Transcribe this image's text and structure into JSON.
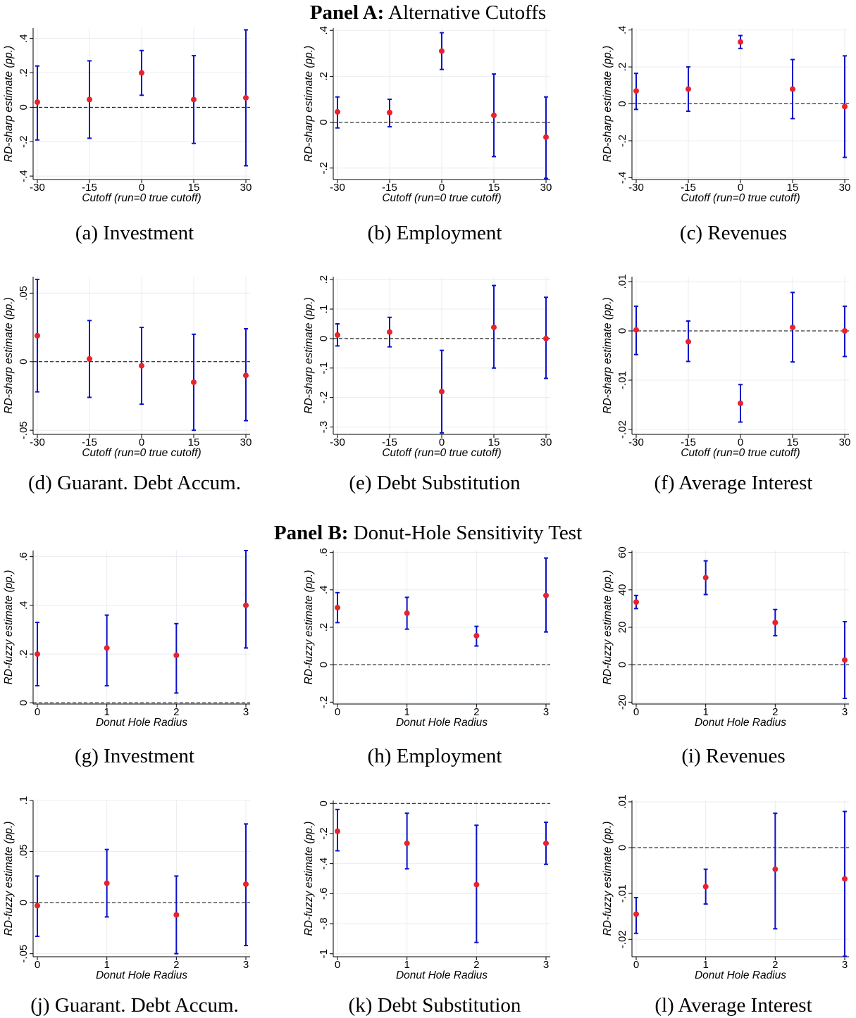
{
  "panel_a": {
    "label": "Panel A:",
    "title": "Alternative Cutoffs"
  },
  "panel_b": {
    "label": "Panel B:",
    "title": "Donut-Hole Sensitivity Test"
  },
  "colors": {
    "point": "#e8232b",
    "ci": "#0a12c9",
    "grid": "#e8ecf0",
    "zero_line": "#000000"
  },
  "chart_data": [
    {
      "type": "scatter",
      "caption": "(a) Investment",
      "xlabel": "Cutoff (run=0 true cutoff)",
      "ylabel": "RD-sharp estimate (pp.)",
      "x": [
        -30,
        -15,
        0,
        15,
        30
      ],
      "xticks": [
        "-30",
        "-15",
        "0",
        "15",
        "30"
      ],
      "xlim": [
        -30,
        30
      ],
      "y": [
        0.03,
        0.045,
        0.2,
        0.045,
        0.055
      ],
      "ci_low": [
        -0.19,
        -0.18,
        0.07,
        -0.21,
        -0.34
      ],
      "ci_high": [
        0.24,
        0.27,
        0.33,
        0.3,
        0.45
      ],
      "ylim": [
        -0.42,
        0.46
      ],
      "yticks": [
        -0.4,
        -0.2,
        0,
        0.2,
        0.4
      ],
      "yticklabels": [
        "-.4",
        "-.2",
        "0",
        ".2",
        ".4"
      ],
      "zero_line": true,
      "grid": true
    },
    {
      "type": "scatter",
      "caption": "(b) Employment",
      "xlabel": "Cutoff (run=0 true cutoff)",
      "ylabel": "RD-sharp estimate (pp.)",
      "x": [
        -30,
        -15,
        0,
        15,
        30
      ],
      "xticks": [
        "-30",
        "-15",
        "0",
        "15",
        "30"
      ],
      "xlim": [
        -30,
        30
      ],
      "y": [
        0.045,
        0.042,
        0.31,
        0.03,
        -0.065
      ],
      "ci_low": [
        -0.025,
        -0.02,
        0.23,
        -0.15,
        -0.245
      ],
      "ci_high": [
        0.11,
        0.1,
        0.39,
        0.21,
        0.11
      ],
      "ylim": [
        -0.25,
        0.41
      ],
      "yticks": [
        -0.2,
        0,
        0.2,
        0.4
      ],
      "yticklabels": [
        "-.2",
        "0",
        ".2",
        ".4"
      ],
      "zero_line": true,
      "grid": true
    },
    {
      "type": "scatter",
      "caption": "(c) Revenues",
      "xlabel": "Cutoff (run=0 true cutoff)",
      "ylabel": "RD-sharp estimate (pp.)",
      "x": [
        -30,
        -15,
        0,
        15,
        30
      ],
      "xticks": [
        "-30",
        "-15",
        "0",
        "15",
        "30"
      ],
      "xlim": [
        -30,
        30
      ],
      "y": [
        0.07,
        0.08,
        0.335,
        0.08,
        -0.015
      ],
      "ci_low": [
        -0.03,
        -0.04,
        0.3,
        -0.08,
        -0.29
      ],
      "ci_high": [
        0.165,
        0.2,
        0.37,
        0.24,
        0.26
      ],
      "ylim": [
        -0.41,
        0.41
      ],
      "yticks": [
        -0.4,
        -0.2,
        0,
        0.2,
        0.4
      ],
      "yticklabels": [
        "-.4",
        "-.2",
        "0",
        ".2",
        ".4"
      ],
      "zero_line": true,
      "grid": true
    },
    {
      "type": "scatter",
      "caption": "(d) Guarant. Debt Accum.",
      "xlabel": "Cutoff (run=0 true cutoff)",
      "ylabel": "RD-sharp estimate (pp.)",
      "x": [
        -30,
        -15,
        0,
        15,
        30
      ],
      "xticks": [
        "-30",
        "-15",
        "0",
        "15",
        "30"
      ],
      "xlim": [
        -30,
        30
      ],
      "y": [
        0.019,
        0.002,
        -0.003,
        -0.015,
        -0.01
      ],
      "ci_low": [
        -0.022,
        -0.026,
        -0.031,
        -0.05,
        -0.043
      ],
      "ci_high": [
        0.06,
        0.03,
        0.025,
        0.02,
        0.024
      ],
      "ylim": [
        -0.053,
        0.062
      ],
      "yticks": [
        -0.05,
        0,
        0.05
      ],
      "yticklabels": [
        "-.05",
        "0",
        ".05"
      ],
      "zero_line": true,
      "grid": true
    },
    {
      "type": "scatter",
      "caption": "(e) Debt Substitution",
      "xlabel": "Cutoff (run=0 true cutoff)",
      "ylabel": "RD-sharp estimate (pp.)",
      "x": [
        -30,
        -15,
        0,
        15,
        30
      ],
      "xticks": [
        "-30",
        "-15",
        "0",
        "15",
        "30"
      ],
      "xlim": [
        -30,
        30
      ],
      "y": [
        0.012,
        0.022,
        -0.18,
        0.038,
        0.0
      ],
      "ci_low": [
        -0.025,
        -0.028,
        -0.32,
        -0.1,
        -0.135
      ],
      "ci_high": [
        0.05,
        0.072,
        -0.04,
        0.18,
        0.14
      ],
      "ylim": [
        -0.325,
        0.21
      ],
      "yticks": [
        -0.3,
        -0.2,
        -0.1,
        0,
        0.1,
        0.2
      ],
      "yticklabels": [
        "-.3",
        "-.2",
        "-.1",
        "0",
        ".1",
        ".2"
      ],
      "zero_line": true,
      "grid": true
    },
    {
      "type": "scatter",
      "caption": "(f) Average Interest",
      "xlabel": "Cutoff (run=0 true cutoff)",
      "ylabel": "RD-sharp estimate (pp.)",
      "x": [
        -30,
        -15,
        0,
        15,
        30
      ],
      "xticks": [
        "-30",
        "-15",
        "0",
        "15",
        "30"
      ],
      "xlim": [
        -30,
        30
      ],
      "y": [
        0.0002,
        -0.0022,
        -0.0147,
        0.0007,
        0.0
      ],
      "ci_low": [
        -0.0048,
        -0.0062,
        -0.0185,
        -0.0063,
        -0.0052
      ],
      "ci_high": [
        0.005,
        0.002,
        -0.0109,
        0.0078,
        0.005
      ],
      "ylim": [
        -0.021,
        0.011
      ],
      "yticks": [
        -0.02,
        -0.01,
        0,
        0.01
      ],
      "yticklabels": [
        "-.02",
        "-.01",
        "0",
        ".01"
      ],
      "zero_line": true,
      "grid": true
    },
    {
      "type": "scatter",
      "caption": "(g) Investment",
      "xlabel": "Donut Hole Radius",
      "ylabel": "RD-fuzzy estimate (pp.)",
      "x": [
        0,
        1,
        2,
        3
      ],
      "xticks": [
        "0",
        "1",
        "2",
        "3"
      ],
      "xlim": [
        0,
        3
      ],
      "y": [
        0.2,
        0.225,
        0.195,
        0.4
      ],
      "ci_low": [
        0.07,
        0.07,
        0.04,
        0.225
      ],
      "ci_high": [
        0.33,
        0.36,
        0.325,
        0.625
      ],
      "ylim": [
        -0.005,
        0.625
      ],
      "yticks": [
        0,
        0.2,
        0.4,
        0.6
      ],
      "yticklabels": [
        "0",
        ".2",
        ".4",
        ".6"
      ],
      "zero_line": true,
      "grid": true
    },
    {
      "type": "scatter",
      "caption": "(h) Employment",
      "xlabel": "Donut Hole Radius",
      "ylabel": "RD-fuzzy estimate (pp.)",
      "x": [
        0,
        1,
        2,
        3
      ],
      "xticks": [
        "0",
        "1",
        "2",
        "3"
      ],
      "xlim": [
        0,
        3
      ],
      "y": [
        0.305,
        0.275,
        0.155,
        0.37
      ],
      "ci_low": [
        0.225,
        0.19,
        0.1,
        0.175
      ],
      "ci_high": [
        0.385,
        0.36,
        0.205,
        0.57
      ],
      "ylim": [
        -0.21,
        0.61
      ],
      "yticks": [
        -0.2,
        0,
        0.2,
        0.4,
        0.6
      ],
      "yticklabels": [
        "-.2",
        "0",
        ".2",
        ".4",
        ".6"
      ],
      "zero_line": true,
      "grid": true
    },
    {
      "type": "scatter",
      "caption": "(i) Revenues",
      "xlabel": "Donut Hole Radius",
      "ylabel": "RD-fuzzy estimate (pp.)",
      "x": [
        0,
        1,
        2,
        3
      ],
      "xticks": [
        "0",
        "1",
        "2",
        "3"
      ],
      "xlim": [
        0,
        3
      ],
      "y": [
        33.5,
        46.5,
        22.5,
        2.5
      ],
      "ci_low": [
        30,
        37.5,
        15.5,
        -18
      ],
      "ci_high": [
        37,
        55.5,
        29.5,
        23
      ],
      "ylim": [
        -21,
        61
      ],
      "yticks": [
        -20,
        0,
        20,
        40,
        60
      ],
      "yticklabels": [
        "-20",
        "0",
        "20",
        "40",
        "60"
      ],
      "zero_line": true,
      "grid": true
    },
    {
      "type": "scatter",
      "caption": "(j) Guarant. Debt Accum.",
      "xlabel": "Donut Hole Radius",
      "ylabel": "RD-fuzzy estimate (pp.)",
      "x": [
        0,
        1,
        2,
        3
      ],
      "xticks": [
        "0",
        "1",
        "2",
        "3"
      ],
      "xlim": [
        0,
        3
      ],
      "y": [
        -0.003,
        0.019,
        -0.012,
        0.018
      ],
      "ci_low": [
        -0.033,
        -0.014,
        -0.05,
        -0.042
      ],
      "ci_high": [
        0.026,
        0.052,
        0.026,
        0.077
      ],
      "ylim": [
        -0.053,
        0.1
      ],
      "yticks": [
        -0.05,
        0,
        0.05,
        0.1
      ],
      "yticklabels": [
        "-.05",
        "0",
        ".05",
        ".1"
      ],
      "zero_line": true,
      "grid": true
    },
    {
      "type": "scatter",
      "caption": "(k) Debt Substitution",
      "xlabel": "Donut Hole Radius",
      "ylabel": "RD-fuzzy estimate (pp.)",
      "x": [
        0,
        1,
        2,
        3
      ],
      "xticks": [
        "0",
        "1",
        "2",
        "3"
      ],
      "xlim": [
        0,
        3
      ],
      "y": [
        -0.185,
        -0.265,
        -0.54,
        -0.265
      ],
      "ci_low": [
        -0.315,
        -0.435,
        -0.925,
        -0.405
      ],
      "ci_high": [
        -0.04,
        -0.065,
        -0.145,
        -0.125
      ],
      "ylim": [
        -1.02,
        0.02
      ],
      "yticks": [
        -1,
        -0.8,
        -0.6,
        -0.4,
        -0.2,
        0
      ],
      "yticklabels": [
        "-1",
        "-.8",
        "-.6",
        "-.4",
        "-.2",
        "0"
      ],
      "zero_line": true,
      "grid": true
    },
    {
      "type": "scatter",
      "caption": "(l) Average Interest",
      "xlabel": "Donut Hole Radius",
      "ylabel": "RD-fuzzy estimate (pp.)",
      "x": [
        0,
        1,
        2,
        3
      ],
      "xticks": [
        "0",
        "1",
        "2",
        "3"
      ],
      "xlim": [
        0,
        3
      ],
      "y": [
        -0.0145,
        -0.0085,
        -0.0047,
        -0.0068
      ],
      "ci_low": [
        -0.0187,
        -0.0123,
        -0.0177,
        -0.0237
      ],
      "ci_high": [
        -0.0109,
        -0.0047,
        0.0075,
        0.0079
      ],
      "ylim": [
        -0.0238,
        0.0103
      ],
      "yticks": [
        -0.02,
        -0.01,
        0,
        0.01
      ],
      "yticklabels": [
        "-.02",
        "-.01",
        "0",
        ".01"
      ],
      "zero_line": true,
      "grid": true
    }
  ]
}
